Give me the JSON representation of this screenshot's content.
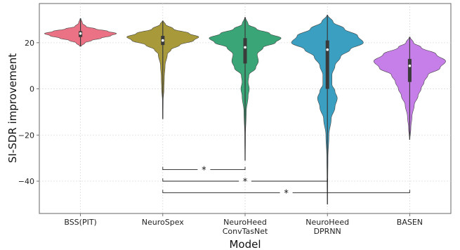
{
  "chart_data": {
    "type": "violin",
    "xlabel": "Model",
    "ylabel": "SI-SDR improvement",
    "ylim": [
      -54,
      37
    ],
    "yticks": [
      -40,
      -20,
      0,
      20
    ],
    "grid": true,
    "categories": [
      "BSS(PIT)",
      "NeuroSpex",
      "NeuroHeed\nConvTasNet",
      "NeuroHeed\nDPRNN",
      "BASEN"
    ],
    "series": [
      {
        "category": "BSS(PIT)",
        "color": "#ea7284",
        "range": [
          18.5,
          30.5
        ],
        "quartiles": [
          22.5,
          24,
          25
        ],
        "density": [
          [
            18.5,
            0.02
          ],
          [
            20,
            0.12
          ],
          [
            21,
            0.3
          ],
          [
            22,
            0.55
          ],
          [
            23,
            0.8
          ],
          [
            24,
            0.95
          ],
          [
            25,
            0.72
          ],
          [
            26,
            0.4
          ],
          [
            27,
            0.15
          ],
          [
            28.5,
            0.05
          ],
          [
            30.5,
            0.01
          ]
        ]
      },
      {
        "category": "NeuroSpex",
        "color": "#a89a3a",
        "range": [
          -13,
          29.5
        ],
        "quartiles": [
          19,
          21,
          23
        ],
        "density": [
          [
            -13,
            0.005
          ],
          [
            -5,
            0.01
          ],
          [
            0,
            0.03
          ],
          [
            5,
            0.04
          ],
          [
            10,
            0.06
          ],
          [
            15,
            0.12
          ],
          [
            17,
            0.22
          ],
          [
            19,
            0.45
          ],
          [
            21,
            0.82
          ],
          [
            22.5,
            0.95
          ],
          [
            24,
            0.7
          ],
          [
            26,
            0.28
          ],
          [
            28,
            0.07
          ],
          [
            29.5,
            0.01
          ]
        ]
      },
      {
        "category": "NeuroHeed\nConvTasNet",
        "color": "#3aa678",
        "range": [
          -31,
          31
        ],
        "quartiles": [
          11,
          18,
          22
        ],
        "density": [
          [
            -31,
            0.005
          ],
          [
            -20,
            0.01
          ],
          [
            -10,
            0.03
          ],
          [
            -3,
            0.08
          ],
          [
            0,
            0.11
          ],
          [
            3,
            0.08
          ],
          [
            6,
            0.1
          ],
          [
            9,
            0.28
          ],
          [
            12,
            0.35
          ],
          [
            15,
            0.32
          ],
          [
            18,
            0.48
          ],
          [
            20,
            0.8
          ],
          [
            22,
            0.95
          ],
          [
            24,
            0.65
          ],
          [
            26,
            0.3
          ],
          [
            28,
            0.08
          ],
          [
            31,
            0.01
          ]
        ]
      },
      {
        "category": "NeuroHeed\nDPRNN",
        "color": "#3a9fc0",
        "range": [
          -50,
          32
        ],
        "quartiles": [
          0,
          17,
          21
        ],
        "density": [
          [
            -50,
            0.005
          ],
          [
            -40,
            0.01
          ],
          [
            -30,
            0.015
          ],
          [
            -20,
            0.04
          ],
          [
            -13,
            0.1
          ],
          [
            -8,
            0.2
          ],
          [
            -4,
            0.26
          ],
          [
            -1,
            0.2
          ],
          [
            2,
            0.12
          ],
          [
            6,
            0.12
          ],
          [
            10,
            0.2
          ],
          [
            14,
            0.35
          ],
          [
            17,
            0.6
          ],
          [
            20,
            0.95
          ],
          [
            23,
            0.8
          ],
          [
            26,
            0.45
          ],
          [
            29,
            0.15
          ],
          [
            32,
            0.01
          ]
        ]
      },
      {
        "category": "BASEN",
        "color": "#c67fe8",
        "range": [
          -22,
          22.5
        ],
        "quartiles": [
          3,
          10,
          13
        ],
        "density": [
          [
            -22,
            0.005
          ],
          [
            -17,
            0.03
          ],
          [
            -12,
            0.06
          ],
          [
            -7,
            0.12
          ],
          [
            -3,
            0.22
          ],
          [
            0,
            0.3
          ],
          [
            3,
            0.38
          ],
          [
            6,
            0.48
          ],
          [
            9,
            0.8
          ],
          [
            12,
            0.95
          ],
          [
            15,
            0.7
          ],
          [
            18,
            0.3
          ],
          [
            20,
            0.1
          ],
          [
            22.5,
            0.01
          ]
        ]
      }
    ],
    "significance": [
      {
        "from": 1,
        "to": 2,
        "y": -35,
        "label": "*"
      },
      {
        "from": 1,
        "to": 3,
        "y": -40,
        "label": "*"
      },
      {
        "from": 1,
        "to": 4,
        "y": -45,
        "label": "*"
      }
    ]
  }
}
